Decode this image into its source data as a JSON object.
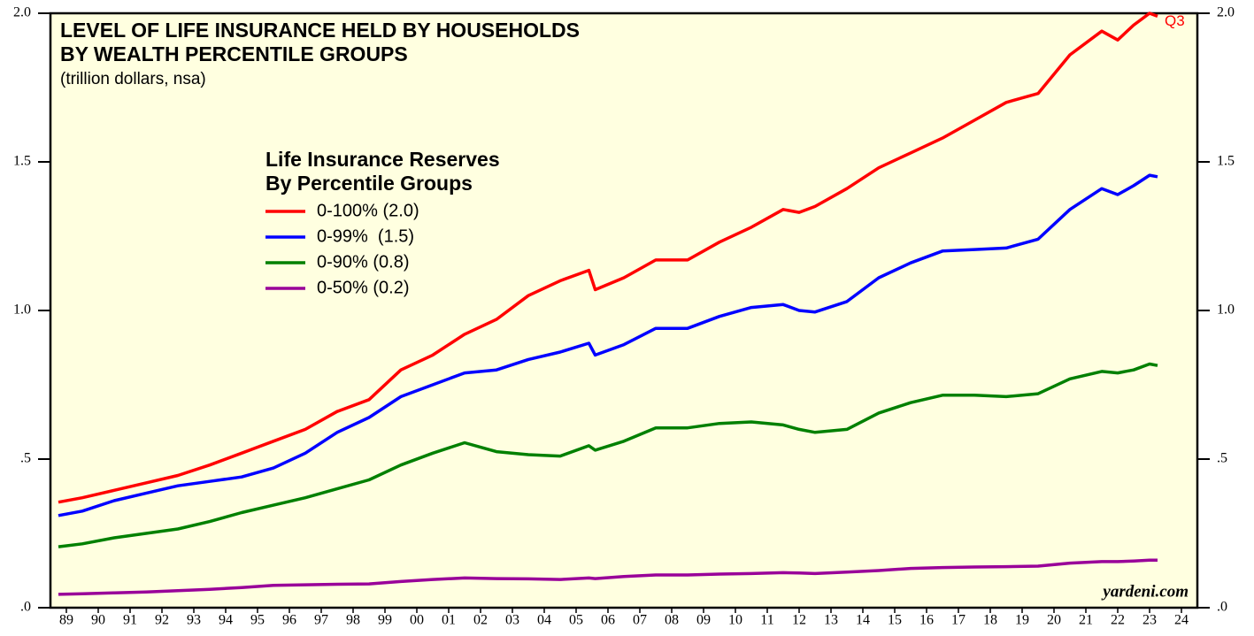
{
  "chart_data": {
    "type": "line",
    "title": [
      "LEVEL OF LIFE INSURANCE HELD BY HOUSEHOLDS",
      "BY WEALTH PERCENTILE GROUPS"
    ],
    "subtitle": "(trillion dollars, nsa)",
    "legend_title": [
      "Life Insurance Reserves",
      "By Percentile Groups"
    ],
    "annotation": "Q3",
    "source": "yardeni.com",
    "x": [
      1989.25,
      1990,
      1991,
      1992,
      1993,
      1994,
      1995,
      1996,
      1997,
      1998,
      1999,
      2000,
      2001,
      2002,
      2003,
      2004,
      2005,
      2005.9,
      2006.1,
      2007,
      2008,
      2009,
      2010,
      2011,
      2012,
      2012.5,
      2013,
      2014,
      2015,
      2016,
      2017,
      2018,
      2019,
      2020,
      2021,
      2022,
      2022.5,
      2023,
      2023.5,
      2023.75
    ],
    "series": [
      {
        "name": "0-100% (2.0)",
        "color": "#ff0000",
        "values": [
          0.355,
          0.37,
          0.395,
          0.42,
          0.445,
          0.48,
          0.52,
          0.56,
          0.6,
          0.66,
          0.7,
          0.8,
          0.85,
          0.92,
          0.97,
          1.05,
          1.1,
          1.135,
          1.07,
          1.11,
          1.17,
          1.17,
          1.23,
          1.28,
          1.34,
          1.33,
          1.35,
          1.41,
          1.48,
          1.53,
          1.58,
          1.64,
          1.7,
          1.73,
          1.86,
          1.94,
          1.91,
          1.96,
          2.0,
          1.99
        ]
      },
      {
        "name": "0-99%  (1.5)",
        "color": "#0000ff",
        "values": [
          0.31,
          0.325,
          0.36,
          0.385,
          0.41,
          0.425,
          0.44,
          0.47,
          0.52,
          0.59,
          0.64,
          0.71,
          0.75,
          0.79,
          0.8,
          0.835,
          0.86,
          0.89,
          0.85,
          0.885,
          0.94,
          0.94,
          0.98,
          1.01,
          1.02,
          1.0,
          0.995,
          1.03,
          1.11,
          1.16,
          1.2,
          1.205,
          1.21,
          1.24,
          1.34,
          1.41,
          1.39,
          1.42,
          1.455,
          1.45
        ]
      },
      {
        "name": "0-90% (0.8)",
        "color": "#008000",
        "values": [
          0.205,
          0.215,
          0.235,
          0.25,
          0.265,
          0.29,
          0.32,
          0.345,
          0.37,
          0.4,
          0.43,
          0.48,
          0.52,
          0.555,
          0.525,
          0.515,
          0.51,
          0.545,
          0.53,
          0.56,
          0.605,
          0.605,
          0.62,
          0.625,
          0.615,
          0.6,
          0.59,
          0.6,
          0.655,
          0.69,
          0.715,
          0.715,
          0.71,
          0.72,
          0.77,
          0.795,
          0.79,
          0.8,
          0.82,
          0.815
        ]
      },
      {
        "name": "0-50% (0.2)",
        "color": "#990099",
        "values": [
          0.045,
          0.047,
          0.05,
          0.053,
          0.057,
          0.062,
          0.068,
          0.075,
          0.077,
          0.079,
          0.08,
          0.088,
          0.095,
          0.1,
          0.098,
          0.097,
          0.095,
          0.1,
          0.098,
          0.105,
          0.11,
          0.11,
          0.113,
          0.115,
          0.118,
          0.117,
          0.115,
          0.12,
          0.125,
          0.132,
          0.135,
          0.137,
          0.138,
          0.14,
          0.15,
          0.155,
          0.155,
          0.157,
          0.16,
          0.16
        ]
      }
    ],
    "xlim": [
      1989,
      2025
    ],
    "xticks": [
      {
        "value": 1989.5,
        "label": "89"
      },
      {
        "value": 1990.5,
        "label": "90"
      },
      {
        "value": 1991.5,
        "label": "91"
      },
      {
        "value": 1992.5,
        "label": "92"
      },
      {
        "value": 1993.5,
        "label": "93"
      },
      {
        "value": 1994.5,
        "label": "94"
      },
      {
        "value": 1995.5,
        "label": "95"
      },
      {
        "value": 1996.5,
        "label": "96"
      },
      {
        "value": 1997.5,
        "label": "97"
      },
      {
        "value": 1998.5,
        "label": "98"
      },
      {
        "value": 1999.5,
        "label": "99"
      },
      {
        "value": 2000.5,
        "label": "00"
      },
      {
        "value": 2001.5,
        "label": "01"
      },
      {
        "value": 2002.5,
        "label": "02"
      },
      {
        "value": 2003.5,
        "label": "03"
      },
      {
        "value": 2004.5,
        "label": "04"
      },
      {
        "value": 2005.5,
        "label": "05"
      },
      {
        "value": 2006.5,
        "label": "06"
      },
      {
        "value": 2007.5,
        "label": "07"
      },
      {
        "value": 2008.5,
        "label": "08"
      },
      {
        "value": 2009.5,
        "label": "09"
      },
      {
        "value": 2010.5,
        "label": "10"
      },
      {
        "value": 2011.5,
        "label": "11"
      },
      {
        "value": 2012.5,
        "label": "12"
      },
      {
        "value": 2013.5,
        "label": "13"
      },
      {
        "value": 2014.5,
        "label": "14"
      },
      {
        "value": 2015.5,
        "label": "15"
      },
      {
        "value": 2016.5,
        "label": "16"
      },
      {
        "value": 2017.5,
        "label": "17"
      },
      {
        "value": 2018.5,
        "label": "18"
      },
      {
        "value": 2019.5,
        "label": "19"
      },
      {
        "value": 2020.5,
        "label": "20"
      },
      {
        "value": 2021.5,
        "label": "21"
      },
      {
        "value": 2022.5,
        "label": "22"
      },
      {
        "value": 2023.5,
        "label": "23"
      },
      {
        "value": 2024.5,
        "label": "24"
      }
    ],
    "ylim": [
      0,
      2.0
    ],
    "yticks": [
      {
        "value": 0,
        "label": ".0"
      },
      {
        "value": 0.5,
        "label": ".5"
      },
      {
        "value": 1.0,
        "label": "1.0"
      },
      {
        "value": 1.5,
        "label": "1.5"
      },
      {
        "value": 2.0,
        "label": "2.0"
      }
    ],
    "background": "#ffffe0"
  }
}
